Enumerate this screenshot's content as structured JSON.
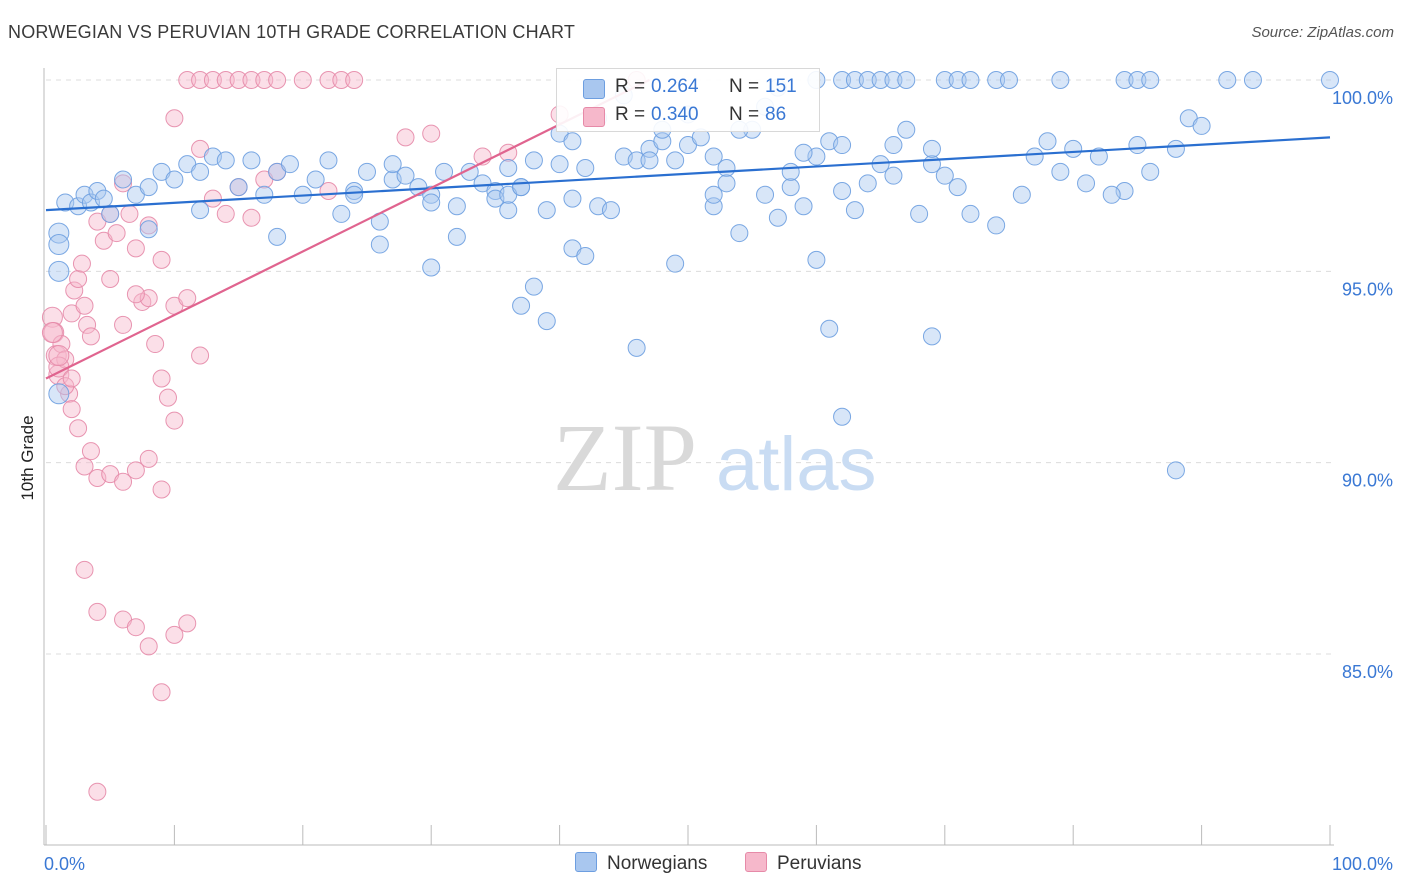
{
  "title": "NORWEGIAN VS PERUVIAN 10TH GRADE CORRELATION CHART",
  "source": "Source: ZipAtlas.com",
  "watermark": {
    "zip": "ZIP",
    "atlas": "atlas"
  },
  "colors": {
    "blue_fill": "#a9c7ef",
    "blue_stroke": "#6d9ee0",
    "blue_line": "#2a6fd0",
    "pink_fill": "#f6b8cb",
    "pink_stroke": "#e68aa8",
    "pink_line": "#e0648f",
    "axis_text": "#3a78d4",
    "grid": "#dcdcdc"
  },
  "legend": {
    "rows": [
      {
        "r_label": "R =",
        "r_value": "0.264",
        "n_label": "N =",
        "n_value": "151"
      },
      {
        "r_label": "R =",
        "r_value": "0.340",
        "n_label": "N =",
        "n_value": "86"
      }
    ]
  },
  "bottom_legend": {
    "norwegians": "Norwegians",
    "peruvians": "Peruvians"
  },
  "chart_data": {
    "type": "scatter",
    "title": "NORWEGIAN VS PERUVIAN 10TH GRADE CORRELATION CHART",
    "xlabel": "",
    "ylabel": "10th Grade",
    "xlim": [
      0,
      100
    ],
    "ylim": [
      80.5,
      100.5
    ],
    "x_tick_labels": [
      "0.0%",
      "100.0%"
    ],
    "y_ticks": [
      {
        "value": 85,
        "label": "85.0%"
      },
      {
        "value": 90,
        "label": "90.0%"
      },
      {
        "value": 95,
        "label": "95.0%"
      },
      {
        "value": 100,
        "label": "100.0%"
      }
    ],
    "grid": true,
    "legend_position": "top-center",
    "series": [
      {
        "name": "Norwegians",
        "trend": {
          "x": [
            0,
            100
          ],
          "y": [
            96.6,
            98.5
          ]
        },
        "points": [
          [
            1,
            96.0
          ],
          [
            1.5,
            96.8
          ],
          [
            2.5,
            96.7
          ],
          [
            3,
            97.0
          ],
          [
            3.5,
            96.8
          ],
          [
            4,
            97.1
          ],
          [
            4.5,
            96.9
          ],
          [
            5,
            96.5
          ],
          [
            6,
            97.4
          ],
          [
            7,
            97.0
          ],
          [
            8,
            97.2
          ],
          [
            9,
            97.6
          ],
          [
            10,
            97.4
          ],
          [
            11,
            97.8
          ],
          [
            12,
            97.6
          ],
          [
            13,
            98.0
          ],
          [
            14,
            97.9
          ],
          [
            15,
            97.2
          ],
          [
            16,
            97.9
          ],
          [
            17,
            97.0
          ],
          [
            18,
            97.6
          ],
          [
            19,
            97.8
          ],
          [
            20,
            97.0
          ],
          [
            21,
            97.4
          ],
          [
            22,
            97.9
          ],
          [
            23,
            96.5
          ],
          [
            24,
            97.1
          ],
          [
            25,
            97.6
          ],
          [
            26,
            96.3
          ],
          [
            27,
            97.4
          ],
          [
            28,
            97.5
          ],
          [
            29,
            97.2
          ],
          [
            30,
            97.0
          ],
          [
            31,
            97.6
          ],
          [
            32,
            96.7
          ],
          [
            33,
            97.6
          ],
          [
            34,
            97.3
          ],
          [
            35,
            97.1
          ],
          [
            36,
            96.6
          ],
          [
            37,
            97.2
          ],
          [
            38,
            97.9
          ],
          [
            39,
            96.6
          ],
          [
            40,
            97.8
          ],
          [
            41,
            96.9
          ],
          [
            42,
            97.7
          ],
          [
            43,
            96.7
          ],
          [
            44,
            96.6
          ],
          [
            45,
            98.0
          ],
          [
            46,
            97.9
          ],
          [
            47,
            98.2
          ],
          [
            48,
            98.4
          ],
          [
            49,
            97.9
          ],
          [
            50,
            98.3
          ],
          [
            51,
            98.5
          ],
          [
            52,
            98.0
          ],
          [
            53,
            97.7
          ],
          [
            54,
            96.0
          ],
          [
            55,
            98.7
          ],
          [
            56,
            97.0
          ],
          [
            57,
            96.4
          ],
          [
            58,
            97.2
          ],
          [
            59,
            96.7
          ],
          [
            60,
            98.0
          ],
          [
            61,
            98.4
          ],
          [
            62,
            97.1
          ],
          [
            63,
            96.6
          ],
          [
            64,
            97.3
          ],
          [
            66,
            98.3
          ],
          [
            67,
            98.7
          ],
          [
            69,
            97.8
          ],
          [
            72,
            96.5
          ],
          [
            77,
            98.0
          ],
          [
            79,
            97.6
          ],
          [
            84,
            97.1
          ],
          [
            88,
            98.2
          ],
          [
            1,
            95.0
          ],
          [
            1,
            95.7
          ],
          [
            1,
            91.8
          ],
          [
            8,
            96.1
          ],
          [
            12,
            96.6
          ],
          [
            18,
            95.9
          ],
          [
            26,
            95.7
          ],
          [
            30,
            95.1
          ],
          [
            37,
            94.1
          ],
          [
            38,
            94.6
          ],
          [
            39,
            93.7
          ],
          [
            41,
            95.6
          ],
          [
            42,
            95.4
          ],
          [
            46,
            93.0
          ],
          [
            49,
            95.2
          ],
          [
            60,
            95.3
          ],
          [
            61,
            93.5
          ],
          [
            69,
            93.3
          ],
          [
            62,
            91.2
          ],
          [
            88,
            89.8
          ],
          [
            30,
            96.8
          ],
          [
            32,
            95.9
          ],
          [
            35,
            96.9
          ],
          [
            36,
            97.0
          ],
          [
            37,
            97.2
          ],
          [
            36,
            97.7
          ],
          [
            40,
            98.6
          ],
          [
            41,
            98.4
          ],
          [
            47,
            97.9
          ],
          [
            48,
            98.7
          ],
          [
            52,
            96.7
          ],
          [
            53,
            97.3
          ],
          [
            54,
            98.7
          ],
          [
            58,
            97.6
          ],
          [
            59,
            98.1
          ],
          [
            62,
            98.3
          ],
          [
            65,
            97.8
          ],
          [
            66,
            97.5
          ],
          [
            68,
            96.5
          ],
          [
            69,
            98.2
          ],
          [
            70,
            97.5
          ],
          [
            71,
            97.2
          ],
          [
            74,
            96.2
          ],
          [
            76,
            97.0
          ],
          [
            78,
            98.4
          ],
          [
            80,
            98.2
          ],
          [
            81,
            97.3
          ],
          [
            82,
            98.0
          ],
          [
            83,
            97.0
          ],
          [
            85,
            98.3
          ],
          [
            86,
            97.6
          ],
          [
            89,
            99.0
          ],
          [
            90,
            98.8
          ],
          [
            62,
            100
          ],
          [
            63,
            100
          ],
          [
            64,
            100
          ],
          [
            65,
            100
          ],
          [
            66,
            100
          ],
          [
            67,
            100
          ],
          [
            70,
            100
          ],
          [
            71,
            100
          ],
          [
            72,
            100
          ],
          [
            74,
            100
          ],
          [
            75,
            100
          ],
          [
            79,
            100
          ],
          [
            84,
            100
          ],
          [
            85,
            100
          ],
          [
            86,
            100
          ],
          [
            92,
            100
          ],
          [
            94,
            100
          ],
          [
            100,
            100
          ],
          [
            43,
            99.0
          ],
          [
            56,
            99.3
          ],
          [
            57,
            99.8
          ],
          [
            60,
            100
          ],
          [
            45,
            99.6
          ],
          [
            50,
            99.1
          ],
          [
            24,
            97.0
          ],
          [
            27,
            97.8
          ],
          [
            52,
            97.0
          ]
        ]
      },
      {
        "name": "Peruvians",
        "trend": {
          "x": [
            0,
            47
          ],
          "y": [
            92.2,
            100
          ]
        },
        "points": [
          [
            0.5,
            93.8
          ],
          [
            0.6,
            93.4
          ],
          [
            0.8,
            92.8
          ],
          [
            1,
            92.3
          ],
          [
            1.2,
            93.1
          ],
          [
            1.5,
            92.7
          ],
          [
            1.8,
            91.8
          ],
          [
            2,
            93.9
          ],
          [
            2.2,
            94.5
          ],
          [
            2.5,
            94.8
          ],
          [
            2.8,
            95.2
          ],
          [
            3,
            94.1
          ],
          [
            3.2,
            93.6
          ],
          [
            3.5,
            93.3
          ],
          [
            4,
            96.3
          ],
          [
            4.5,
            95.8
          ],
          [
            5,
            96.5
          ],
          [
            5.5,
            96.0
          ],
          [
            6,
            97.3
          ],
          [
            6.5,
            96.5
          ],
          [
            7,
            95.6
          ],
          [
            7.5,
            94.2
          ],
          [
            8,
            94.3
          ],
          [
            8.5,
            93.1
          ],
          [
            9,
            92.2
          ],
          [
            9.5,
            91.7
          ],
          [
            10,
            94.1
          ],
          [
            1,
            92.5
          ],
          [
            1.5,
            92.0
          ],
          [
            2,
            91.4
          ],
          [
            2.5,
            90.9
          ],
          [
            3,
            89.9
          ],
          [
            3.5,
            90.3
          ],
          [
            4,
            89.6
          ],
          [
            5,
            89.7
          ],
          [
            6,
            89.5
          ],
          [
            7,
            89.8
          ],
          [
            8,
            90.1
          ],
          [
            9,
            89.3
          ],
          [
            10,
            91.1
          ],
          [
            3,
            87.2
          ],
          [
            4,
            86.1
          ],
          [
            6,
            85.9
          ],
          [
            7,
            85.7
          ],
          [
            8,
            85.2
          ],
          [
            9,
            84.0
          ],
          [
            10,
            85.5
          ],
          [
            11,
            85.8
          ],
          [
            4,
            81.4
          ],
          [
            5,
            94.8
          ],
          [
            6,
            93.6
          ],
          [
            7,
            94.4
          ],
          [
            8,
            96.2
          ],
          [
            9,
            95.3
          ],
          [
            11,
            94.3
          ],
          [
            12,
            98.2
          ],
          [
            13,
            96.9
          ],
          [
            14,
            96.5
          ],
          [
            15,
            97.2
          ],
          [
            16,
            96.4
          ],
          [
            17,
            97.4
          ],
          [
            18,
            97.6
          ],
          [
            22,
            97.1
          ],
          [
            28,
            98.5
          ],
          [
            30,
            98.6
          ],
          [
            10,
            99.0
          ],
          [
            11,
            100
          ],
          [
            12,
            100
          ],
          [
            13,
            100
          ],
          [
            14,
            100
          ],
          [
            15,
            100
          ],
          [
            16,
            100
          ],
          [
            17,
            100
          ],
          [
            18,
            100
          ],
          [
            20,
            100
          ],
          [
            22,
            100
          ],
          [
            23,
            100
          ],
          [
            24,
            100
          ],
          [
            34,
            98.0
          ],
          [
            36,
            98.1
          ],
          [
            40,
            99.1
          ],
          [
            46,
            100
          ],
          [
            0.5,
            93.4
          ],
          [
            1,
            92.8
          ],
          [
            2,
            92.2
          ],
          [
            12,
            92.8
          ]
        ]
      }
    ]
  }
}
